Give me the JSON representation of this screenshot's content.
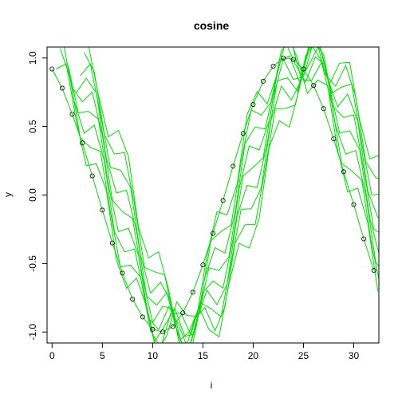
{
  "chart_data": {
    "type": "line",
    "title": "cosine",
    "xlabel": "i",
    "ylabel": "y",
    "xlim": [
      -0.5,
      32.5
    ],
    "ylim": [
      -1.08,
      1.08
    ],
    "xticks": [
      0,
      5,
      10,
      15,
      20,
      25,
      30
    ],
    "yticks": [
      -1.0,
      -0.5,
      0.0,
      0.5,
      1.0
    ],
    "ytick_labels": [
      "-1.0",
      "-0.5",
      "0.0",
      "0.5",
      "1.0"
    ],
    "grid": false,
    "legend": "none",
    "colors": {
      "lines": "#00dd00",
      "points": "#000000",
      "axes": "#000000"
    },
    "series": [
      {
        "values": [
          0.92,
          0.78,
          0.59,
          0.38,
          0.14,
          -0.11,
          -0.35,
          -0.57,
          -0.76,
          -0.89,
          -0.98,
          -1.0,
          -0.96,
          -0.86,
          -0.71,
          -0.51,
          -0.28,
          -0.04,
          0.21,
          0.45,
          0.66,
          0.83,
          0.94,
          1.0,
          0.99,
          0.92,
          0.8,
          0.63,
          0.41,
          0.17,
          -0.07,
          -0.32,
          -0.55
        ]
      }
    ]
  }
}
